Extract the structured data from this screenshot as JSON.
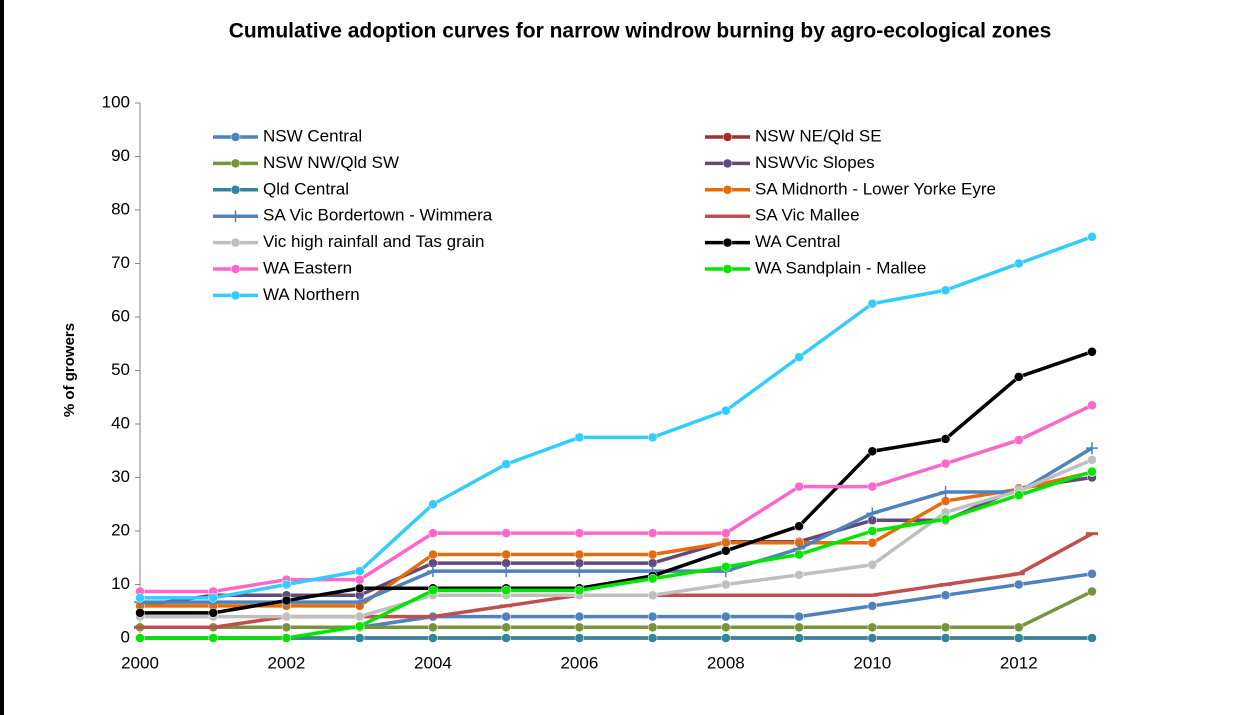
{
  "chart_data": {
    "type": "line",
    "title": "Cumulative adoption curves for narrow windrow burning by agro-ecological zones",
    "y_label": "% of growers",
    "x": [
      2000,
      2001,
      2002,
      2003,
      2004,
      2005,
      2006,
      2007,
      2008,
      2009,
      2010,
      2011,
      2012,
      2013
    ],
    "xlim": [
      2000,
      2013
    ],
    "xticks": [
      2000,
      2002,
      2004,
      2006,
      2008,
      2010,
      2012
    ],
    "ylim": [
      0,
      100
    ],
    "yticks": [
      0,
      10,
      20,
      30,
      40,
      50,
      60,
      70,
      80,
      90,
      100
    ],
    "grid": false,
    "series": [
      {
        "name": "NSW Central",
        "color": "#4f81bd",
        "marker": "circle",
        "values": [
          2,
          2,
          2,
          2,
          4,
          4,
          4,
          4,
          4,
          4,
          6,
          8,
          10,
          12
        ]
      },
      {
        "name": "NSW NE/Qld SE",
        "color": "#a0302c",
        "marker": "circle",
        "values": [
          0,
          0,
          0,
          0,
          0,
          0,
          0,
          0,
          0,
          0,
          0,
          0,
          0,
          0
        ]
      },
      {
        "name": "NSW NW/Qld SW",
        "color": "#77933c",
        "marker": "circle",
        "values": [
          2,
          2,
          2,
          2,
          2,
          2,
          2,
          2,
          2,
          2,
          2,
          2,
          2,
          8.7
        ]
      },
      {
        "name": "NSWVic Slopes",
        "color": "#604a7b",
        "marker": "circle",
        "values": [
          6,
          8,
          8,
          8,
          14,
          14,
          14,
          14,
          18,
          18,
          22,
          22,
          28,
          30
        ]
      },
      {
        "name": "Qld Central",
        "color": "#31859c",
        "marker": "circle",
        "values": [
          0,
          0,
          0,
          0,
          0,
          0,
          0,
          0,
          0,
          0,
          0,
          0,
          0,
          0
        ]
      },
      {
        "name": "SA Midnorth - Lower Yorke Eyre",
        "color": "#e46c0a",
        "marker": "circle",
        "values": [
          6,
          6,
          6,
          6,
          15.6,
          15.6,
          15.6,
          15.6,
          17.8,
          17.8,
          17.8,
          25.6,
          27.8,
          31
        ]
      },
      {
        "name": "SA Vic Bordertown - Wimmera",
        "color": "#4f81bd",
        "marker": "plus",
        "values": [
          6.7,
          6.7,
          6.7,
          6.7,
          12.5,
          12.5,
          12.5,
          12.5,
          12.5,
          16.7,
          23.3,
          27.3,
          27.3,
          35.5
        ]
      },
      {
        "name": "SA Vic Mallee",
        "color": "#c0504d",
        "marker": "dash",
        "values": [
          2,
          2,
          4,
          4,
          4,
          6,
          8,
          8,
          8,
          8,
          8,
          10,
          12,
          19.5
        ]
      },
      {
        "name": "Vic high rainfall and Tas grain",
        "color": "#bfbfbf",
        "marker": "circle",
        "values": [
          4,
          4,
          4,
          4,
          8,
          8,
          8,
          8,
          10,
          11.8,
          13.7,
          23.5,
          27.5,
          33.3
        ]
      },
      {
        "name": "WA Central",
        "color": "#000000",
        "marker": "circle",
        "values": [
          4.7,
          4.7,
          7,
          9.3,
          9.3,
          9.3,
          9.3,
          11.6,
          16.3,
          20.9,
          34.9,
          37.2,
          48.8,
          53.5
        ]
      },
      {
        "name": "WA Eastern",
        "color": "#ff66cc",
        "marker": "circle",
        "values": [
          8.7,
          8.7,
          10.9,
          10.9,
          19.6,
          19.6,
          19.6,
          19.6,
          19.6,
          28.3,
          28.3,
          32.6,
          37,
          43.5
        ]
      },
      {
        "name": "WA Sandplain - Mallee",
        "color": "#00e600",
        "marker": "circle",
        "values": [
          0,
          0,
          0,
          2.2,
          8.9,
          8.9,
          8.9,
          11.1,
          13.3,
          15.6,
          20,
          22.2,
          26.7,
          31.1
        ]
      },
      {
        "name": "WA Northern",
        "color": "#33ccff",
        "marker": "circle",
        "values": [
          7.5,
          7.5,
          10,
          12.5,
          25,
          32.5,
          37.5,
          37.5,
          42.5,
          52.5,
          62.5,
          65,
          70,
          75
        ]
      }
    ]
  }
}
